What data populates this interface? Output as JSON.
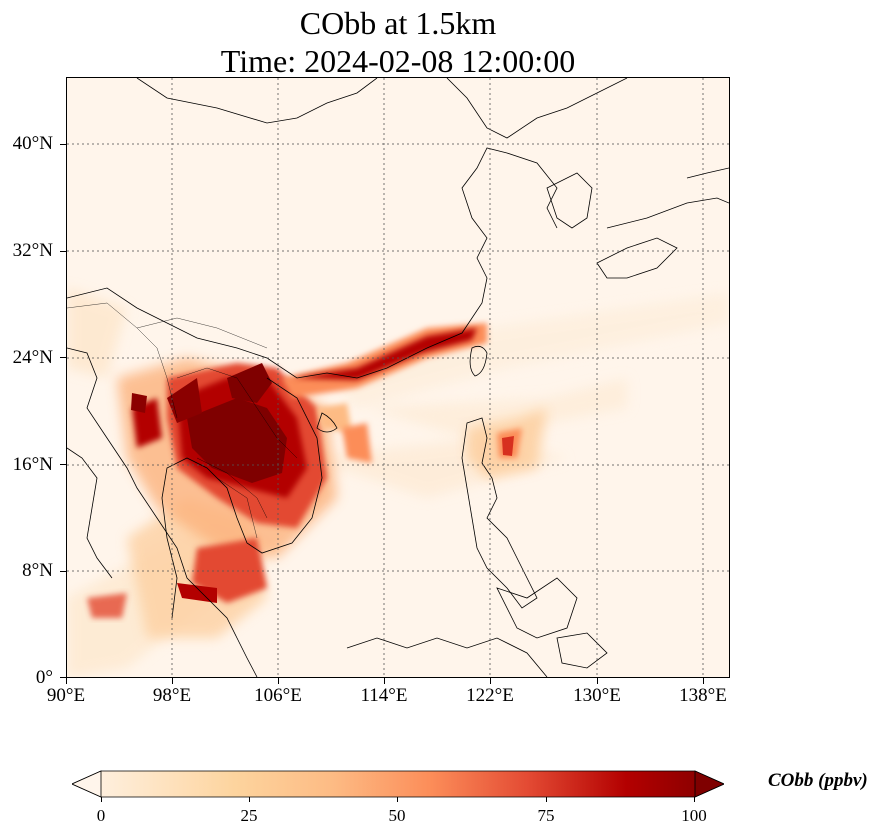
{
  "title": {
    "line1": "CObb at 1.5km",
    "line2": "Time: 2024-02-08 12:00:00"
  },
  "map": {
    "extent_lon": [
      90,
      140
    ],
    "extent_lat": [
      0,
      45
    ],
    "lat_labels": [
      "0°",
      "8°N",
      "16°N",
      "24°N",
      "32°N",
      "40°N"
    ],
    "lon_labels": [
      "90°E",
      "98°E",
      "106°E",
      "114°E",
      "122°E",
      "130°E",
      "138°E"
    ],
    "gridlines": "dotted"
  },
  "colorbar": {
    "label": "CObb (ppbv)",
    "ticks": [
      "0",
      "25",
      "50",
      "75",
      "100"
    ],
    "range": [
      0,
      100
    ],
    "colormap": "OrRd",
    "colors": [
      "#fff5eb",
      "#fdd49e",
      "#fdbb84",
      "#fc8d59",
      "#e34a33",
      "#b30000",
      "#7f0000"
    ],
    "extend": "both"
  }
}
